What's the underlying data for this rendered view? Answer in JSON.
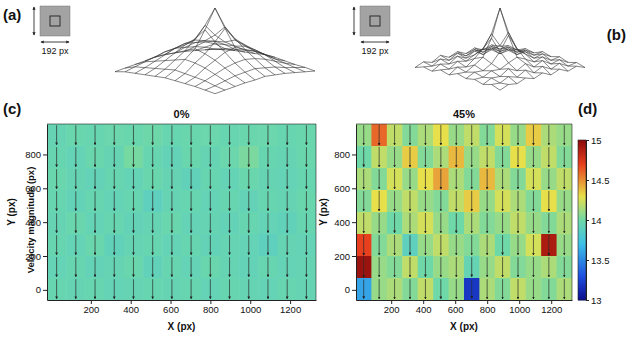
{
  "chart_data": [
    {
      "type": "surface",
      "label": "(a)",
      "inset_label": "192 px",
      "tick_labels": false,
      "z": [
        [
          0.1,
          0.12,
          0.14,
          0.15,
          0.16,
          0.18,
          0.17,
          0.15,
          0.13,
          0.12,
          0.1
        ],
        [
          0.12,
          0.16,
          0.2,
          0.22,
          0.24,
          0.26,
          0.24,
          0.21,
          0.18,
          0.15,
          0.12
        ],
        [
          0.14,
          0.22,
          0.3,
          0.32,
          0.33,
          0.36,
          0.34,
          0.3,
          0.24,
          0.18,
          0.14
        ],
        [
          0.16,
          0.26,
          0.36,
          0.4,
          0.42,
          0.48,
          0.44,
          0.38,
          0.3,
          0.22,
          0.16
        ],
        [
          0.17,
          0.28,
          0.38,
          0.44,
          0.55,
          0.7,
          0.56,
          0.44,
          0.34,
          0.24,
          0.17
        ],
        [
          0.18,
          0.3,
          0.4,
          0.48,
          0.72,
          1.0,
          0.74,
          0.5,
          0.36,
          0.26,
          0.18
        ],
        [
          0.17,
          0.28,
          0.36,
          0.44,
          0.56,
          0.72,
          0.58,
          0.46,
          0.34,
          0.24,
          0.16
        ],
        [
          0.15,
          0.24,
          0.3,
          0.36,
          0.42,
          0.48,
          0.44,
          0.38,
          0.3,
          0.22,
          0.15
        ],
        [
          0.13,
          0.2,
          0.24,
          0.28,
          0.32,
          0.36,
          0.34,
          0.3,
          0.24,
          0.18,
          0.13
        ],
        [
          0.11,
          0.16,
          0.18,
          0.2,
          0.22,
          0.24,
          0.22,
          0.2,
          0.18,
          0.14,
          0.11
        ],
        [
          0.09,
          0.12,
          0.13,
          0.14,
          0.15,
          0.16,
          0.15,
          0.14,
          0.13,
          0.11,
          0.09
        ]
      ]
    },
    {
      "type": "surface",
      "label": "(b)",
      "inset_label": "192 px",
      "tick_labels": false,
      "z": [
        [
          0.14,
          0.18,
          0.15,
          0.2,
          0.17,
          0.22,
          0.18,
          0.21,
          0.16,
          0.19,
          0.15
        ],
        [
          0.19,
          0.16,
          0.22,
          0.18,
          0.24,
          0.2,
          0.25,
          0.19,
          0.23,
          0.17,
          0.2
        ],
        [
          0.15,
          0.23,
          0.19,
          0.26,
          0.21,
          0.28,
          0.22,
          0.27,
          0.2,
          0.24,
          0.16
        ],
        [
          0.21,
          0.18,
          0.27,
          0.22,
          0.3,
          0.34,
          0.31,
          0.23,
          0.28,
          0.19,
          0.22
        ],
        [
          0.16,
          0.25,
          0.21,
          0.31,
          0.4,
          0.62,
          0.42,
          0.3,
          0.22,
          0.26,
          0.17
        ],
        [
          0.22,
          0.19,
          0.29,
          0.35,
          0.6,
          1.0,
          0.64,
          0.36,
          0.3,
          0.2,
          0.23
        ],
        [
          0.17,
          0.26,
          0.22,
          0.3,
          0.42,
          0.6,
          0.44,
          0.31,
          0.23,
          0.27,
          0.18
        ],
        [
          0.23,
          0.19,
          0.28,
          0.24,
          0.31,
          0.36,
          0.3,
          0.25,
          0.29,
          0.2,
          0.22
        ],
        [
          0.16,
          0.24,
          0.2,
          0.27,
          0.22,
          0.28,
          0.23,
          0.26,
          0.21,
          0.24,
          0.17
        ],
        [
          0.2,
          0.17,
          0.23,
          0.19,
          0.25,
          0.21,
          0.24,
          0.2,
          0.22,
          0.18,
          0.19
        ],
        [
          0.15,
          0.19,
          0.16,
          0.21,
          0.17,
          0.22,
          0.18,
          0.2,
          0.16,
          0.19,
          0.14
        ]
      ]
    },
    {
      "type": "heatmap",
      "label": "(c)",
      "title": "0%",
      "x_label": "X (px)",
      "y_label": "Y (px)",
      "xlim": [
        -20,
        1330
      ],
      "ylim": [
        -60,
        980
      ],
      "xticks": [
        200,
        400,
        600,
        800,
        1000,
        1200
      ],
      "yticks": [
        0,
        200,
        400,
        600,
        800
      ],
      "vector_angle": -90,
      "cells": [
        [
          13.95,
          13.97,
          13.96,
          13.98,
          13.97,
          13.99,
          13.96,
          13.97,
          13.98,
          13.96,
          13.97,
          13.98,
          13.96,
          13.97
        ],
        [
          13.96,
          13.94,
          13.97,
          13.95,
          14.02,
          13.96,
          13.93,
          13.97,
          13.95,
          13.98,
          14.03,
          13.96,
          13.95,
          13.97
        ],
        [
          13.97,
          13.95,
          13.93,
          13.96,
          13.94,
          13.97,
          13.95,
          13.92,
          13.96,
          13.94,
          13.97,
          13.95,
          13.94,
          13.96
        ],
        [
          13.96,
          13.93,
          13.96,
          13.94,
          13.96,
          13.9,
          13.95,
          13.96,
          13.94,
          13.96,
          13.93,
          13.96,
          13.95,
          13.97
        ],
        [
          13.95,
          13.97,
          13.94,
          13.96,
          13.93,
          13.95,
          13.97,
          13.94,
          13.95,
          13.93,
          13.96,
          13.94,
          13.92,
          13.96
        ],
        [
          13.96,
          13.94,
          13.97,
          13.92,
          13.95,
          13.96,
          13.94,
          13.96,
          13.93,
          13.95,
          13.94,
          13.9,
          13.95,
          13.94
        ],
        [
          13.94,
          13.96,
          13.93,
          13.95,
          13.97,
          13.92,
          13.96,
          13.94,
          13.97,
          13.95,
          13.93,
          13.96,
          13.94,
          13.95
        ],
        [
          13.96,
          13.95,
          13.96,
          13.94,
          13.95,
          13.96,
          13.95,
          13.96,
          13.94,
          13.96,
          13.95,
          13.94,
          13.96,
          13.95
        ]
      ]
    },
    {
      "type": "heatmap",
      "label": "(d)",
      "title": "45%",
      "x_label": "X (px)",
      "y_label": "Y (px)",
      "xlim": [
        -20,
        1330
      ],
      "ylim": [
        -60,
        980
      ],
      "xticks": [
        200,
        400,
        600,
        800,
        1000,
        1200
      ],
      "yticks": [
        0,
        200,
        400,
        600,
        800
      ],
      "vector_angle": -90,
      "cells": [
        [
          14.1,
          14.6,
          14.2,
          14.05,
          14.15,
          14.3,
          14.1,
          14.2,
          14.05,
          14.25,
          14.1,
          14.35,
          14.15,
          14.1
        ],
        [
          14.0,
          14.2,
          14.1,
          14.35,
          14.05,
          14.15,
          14.4,
          14.1,
          14.2,
          14.05,
          14.3,
          14.1,
          14.2,
          14.05
        ],
        [
          14.15,
          14.05,
          14.25,
          14.1,
          14.3,
          14.45,
          14.15,
          14.05,
          14.4,
          14.15,
          14.05,
          14.25,
          14.1,
          14.2
        ],
        [
          14.05,
          14.3,
          14.1,
          14.2,
          14.1,
          14.05,
          14.2,
          14.35,
          14.1,
          14.25,
          14.15,
          14.05,
          14.3,
          14.1
        ],
        [
          14.2,
          14.1,
          14.0,
          14.15,
          14.25,
          14.1,
          14.0,
          14.15,
          14.05,
          14.1,
          14.2,
          14.1,
          14.05,
          14.15
        ],
        [
          14.7,
          14.05,
          14.15,
          13.9,
          14.1,
          14.2,
          14.1,
          14.05,
          14.15,
          14.0,
          14.1,
          14.25,
          14.9,
          14.1
        ],
        [
          14.95,
          14.1,
          14.05,
          14.2,
          14.0,
          14.1,
          14.15,
          13.95,
          14.1,
          14.2,
          14.05,
          14.1,
          14.15,
          14.05
        ],
        [
          13.6,
          14.1,
          14.15,
          14.05,
          14.2,
          14.0,
          14.1,
          13.2,
          14.15,
          14.05,
          14.2,
          14.1,
          14.05,
          14.15
        ]
      ],
      "colorbar": {
        "range": [
          13,
          15
        ],
        "ticks": [
          13,
          13.5,
          14,
          14.5,
          15
        ],
        "label": "Velocity magnitude (px)"
      }
    }
  ]
}
